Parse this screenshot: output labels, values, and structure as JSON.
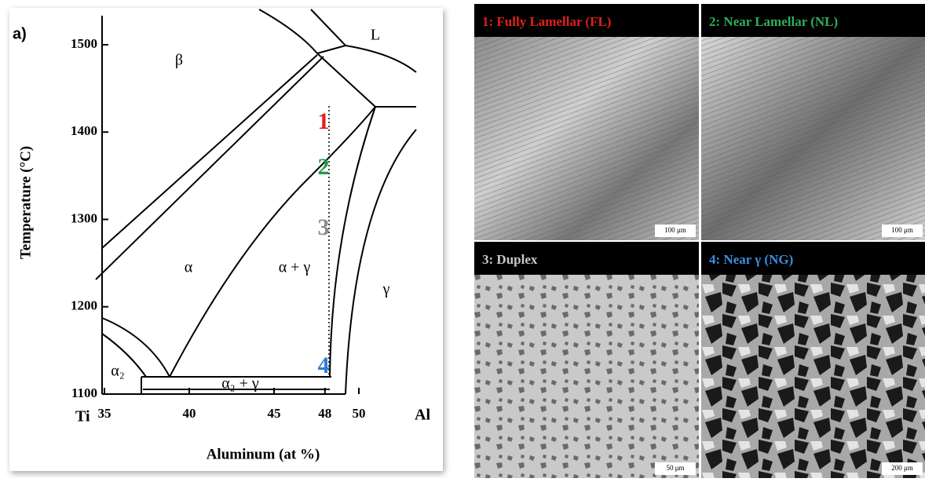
{
  "panel_label": "a)",
  "phase_diagram": {
    "y_axis_label": "Temperature (°C)",
    "x_axis_label": "Aluminum (at %)",
    "yticks": [
      1100,
      1200,
      1300,
      1400,
      1500
    ],
    "xticks": [
      35,
      40,
      45,
      48,
      50
    ],
    "x_end_labels": [
      "Ti",
      "Al"
    ],
    "regions": [
      "β",
      "L",
      "α",
      "α + γ",
      "γ",
      "α₂",
      "α₂ + γ"
    ],
    "markers": [
      {
        "label": "1",
        "color": "#e0201b"
      },
      {
        "label": "2",
        "color": "#1f9a4a"
      },
      {
        "label": "3",
        "color": "#8a8a8a"
      },
      {
        "label": "4",
        "color": "#2f7fd0"
      }
    ]
  },
  "micrographs": [
    {
      "title": "1: Fully Lamellar (FL)",
      "color": "#e0201b",
      "scale_bar": "100 μm"
    },
    {
      "title": "2: Near Lamellar (NL)",
      "color": "#2fae5a",
      "scale_bar": "100 μm"
    },
    {
      "title": "3: Duplex",
      "color": "#c8c8c8",
      "scale_bar": "50 μm"
    },
    {
      "title": "4: Near γ (NG)",
      "color": "#3a8fe0",
      "scale_bar": "200 μm"
    }
  ]
}
